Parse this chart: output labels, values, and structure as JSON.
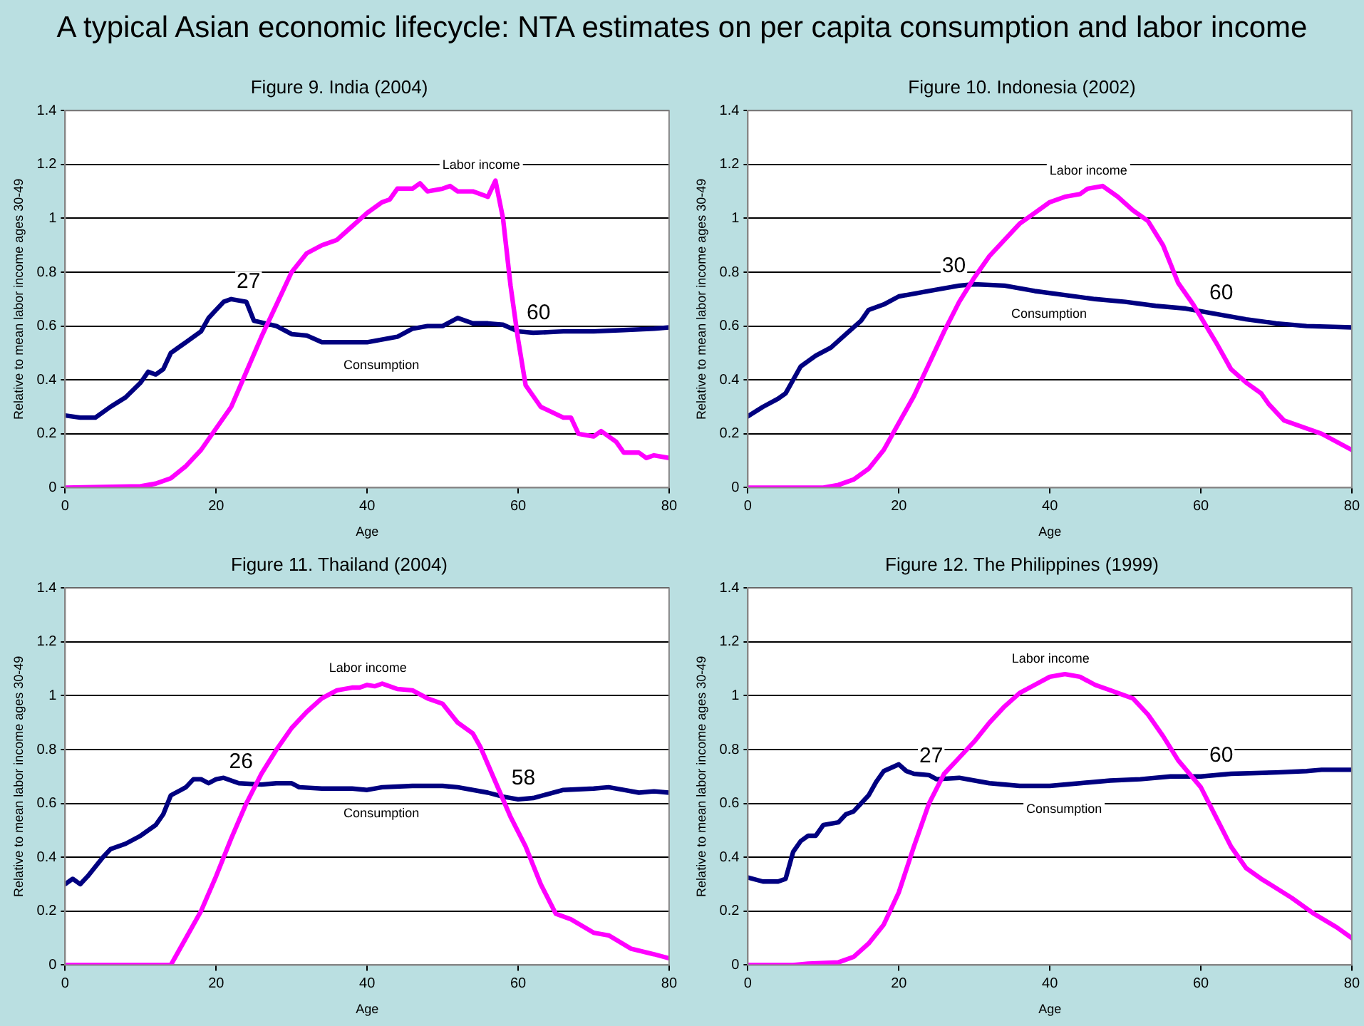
{
  "chart_data": [
    {
      "type": "line",
      "title": "Figure 9. India (2004)",
      "xlabel": "Age",
      "ylabel": "Relative to mean labor income ages 30-49",
      "xlim": [
        0,
        80
      ],
      "xticks": [
        0,
        20,
        40,
        60,
        80
      ],
      "ylim": [
        0,
        1.4
      ],
      "yticks": [
        0,
        0.2,
        0.4,
        0.6,
        0.8,
        1,
        1.2,
        1.4
      ],
      "grid": "y",
      "legend": false,
      "marker": "none",
      "line_style": "solid",
      "annotations": [
        "A typical Asian economic lifecycle: NTA estimates on per capita consumption and labor income",
        {
          "text": "27",
          "x": 27,
          "y": 0.61
        },
        {
          "text": "60",
          "x": 60,
          "y": 0.58
        }
      ],
      "series": [
        {
          "name": "Labor income",
          "color": "#ff00ff",
          "x": [
            0,
            10,
            12,
            14,
            16,
            18,
            20,
            22,
            24,
            26,
            28,
            30,
            32,
            34,
            36,
            38,
            40,
            42,
            43,
            44,
            46,
            47,
            48,
            50,
            51,
            52,
            54,
            56,
            57,
            58,
            59,
            60,
            61,
            63,
            66,
            67,
            68,
            70,
            71,
            73,
            74,
            76,
            77,
            78,
            80
          ],
          "values": [
            0,
            0.005,
            0.015,
            0.035,
            0.08,
            0.14,
            0.22,
            0.3,
            0.43,
            0.56,
            0.68,
            0.8,
            0.87,
            0.9,
            0.92,
            0.97,
            1.02,
            1.06,
            1.07,
            1.11,
            1.11,
            1.13,
            1.1,
            1.11,
            1.12,
            1.1,
            1.1,
            1.08,
            1.14,
            1,
            0.75,
            0.55,
            0.38,
            0.3,
            0.26,
            0.26,
            0.2,
            0.19,
            0.21,
            0.17,
            0.13,
            0.13,
            0.11,
            0.12,
            0.11
          ]
        },
        {
          "name": "Consumption",
          "color": "#000080",
          "x": [
            0,
            2,
            4,
            6,
            8,
            10,
            11,
            12,
            13,
            14,
            16,
            18,
            19,
            20,
            21,
            22,
            24,
            25,
            28,
            30,
            32,
            34,
            36,
            40,
            44,
            46,
            48,
            50,
            52,
            54,
            56,
            58,
            60,
            62,
            66,
            70,
            74,
            78,
            80
          ],
          "values": [
            0.268,
            0.26,
            0.26,
            0.3,
            0.335,
            0.39,
            0.43,
            0.42,
            0.44,
            0.5,
            0.54,
            0.58,
            0.63,
            0.66,
            0.69,
            0.7,
            0.69,
            0.62,
            0.6,
            0.57,
            0.565,
            0.54,
            0.54,
            0.54,
            0.56,
            0.59,
            0.6,
            0.6,
            0.63,
            0.61,
            0.61,
            0.605,
            0.58,
            0.575,
            0.58,
            0.58,
            0.585,
            0.59,
            0.595
          ]
        }
      ]
    },
    {
      "type": "line",
      "title": "Figure 10. Indonesia (2002)",
      "xlabel": "Age",
      "ylabel": "Relative to mean labor income ages 30-49",
      "xlim": [
        0,
        80
      ],
      "xticks": [
        0,
        20,
        40,
        60,
        80
      ],
      "ylim": [
        0,
        1.4
      ],
      "yticks": [
        0,
        0.2,
        0.4,
        0.6,
        0.8,
        1,
        1.2,
        1.4
      ],
      "grid": "y",
      "legend": false,
      "marker": "none",
      "line_style": "solid",
      "annotations": [
        {
          "text": "30",
          "x": 30,
          "y": 0.755
        },
        {
          "text": "60",
          "x": 60,
          "y": 0.655
        }
      ],
      "series": [
        {
          "name": "Labor income",
          "color": "#ff00ff",
          "x": [
            0,
            10,
            12,
            14,
            16,
            18,
            20,
            22,
            24,
            26,
            28,
            30,
            32,
            34,
            36,
            38,
            40,
            42,
            44,
            45,
            47,
            49,
            51,
            53,
            55,
            57,
            59,
            62,
            64,
            66,
            68,
            69,
            71,
            74,
            76,
            80
          ],
          "values": [
            0,
            0,
            0.01,
            0.03,
            0.07,
            0.14,
            0.24,
            0.34,
            0.46,
            0.58,
            0.69,
            0.78,
            0.86,
            0.92,
            0.98,
            1.02,
            1.06,
            1.08,
            1.09,
            1.11,
            1.12,
            1.08,
            1.03,
            0.99,
            0.9,
            0.76,
            0.68,
            0.54,
            0.44,
            0.39,
            0.35,
            0.31,
            0.25,
            0.22,
            0.2,
            0.14
          ]
        },
        {
          "name": "Consumption",
          "color": "#000080",
          "x": [
            0,
            2,
            4,
            5,
            7,
            9,
            11,
            13,
            15,
            16,
            18,
            20,
            24,
            28,
            30,
            34,
            38,
            42,
            46,
            50,
            54,
            58,
            62,
            66,
            70,
            74,
            80
          ],
          "values": [
            0.265,
            0.3,
            0.33,
            0.35,
            0.45,
            0.49,
            0.52,
            0.57,
            0.62,
            0.66,
            0.68,
            0.71,
            0.73,
            0.75,
            0.755,
            0.75,
            0.73,
            0.715,
            0.7,
            0.69,
            0.675,
            0.665,
            0.645,
            0.625,
            0.61,
            0.6,
            0.595
          ]
        }
      ]
    },
    {
      "type": "line",
      "title": "Figure 11. Thailand (2004)",
      "xlabel": "Age",
      "ylabel": "Relative to mean labor income ages 30-49",
      "xlim": [
        0,
        80
      ],
      "xticks": [
        0,
        20,
        40,
        60,
        80
      ],
      "ylim": [
        0,
        1.4
      ],
      "yticks": [
        0,
        0.2,
        0.4,
        0.6,
        0.8,
        1,
        1.2,
        1.4
      ],
      "grid": "y",
      "legend": false,
      "marker": "none",
      "line_style": "solid",
      "annotations": [
        {
          "text": "26",
          "x": 26,
          "y": 0.67
        },
        {
          "text": "58",
          "x": 58,
          "y": 0.625
        }
      ],
      "series": [
        {
          "name": "Labor income",
          "color": "#ff00ff",
          "x": [
            0,
            14,
            16,
            18,
            20,
            22,
            24,
            26,
            28,
            30,
            32,
            34,
            36,
            38,
            39,
            40,
            41,
            42,
            44,
            46,
            48,
            50,
            52,
            54,
            55,
            57,
            59,
            61,
            63,
            65,
            67,
            70,
            72,
            75,
            78,
            80
          ],
          "values": [
            0,
            0,
            0.1,
            0.2,
            0.33,
            0.47,
            0.6,
            0.71,
            0.8,
            0.88,
            0.94,
            0.99,
            1.02,
            1.03,
            1.03,
            1.04,
            1.035,
            1.045,
            1.025,
            1.02,
            0.99,
            0.97,
            0.9,
            0.86,
            0.81,
            0.68,
            0.55,
            0.44,
            0.3,
            0.19,
            0.17,
            0.12,
            0.11,
            0.06,
            0.04,
            0.025
          ]
        },
        {
          "name": "Consumption",
          "color": "#000080",
          "x": [
            0,
            1,
            2,
            3,
            5,
            6,
            8,
            10,
            12,
            13,
            14,
            16,
            17,
            18,
            19,
            20,
            21,
            23,
            26,
            28,
            30,
            31,
            34,
            38,
            40,
            42,
            46,
            50,
            52,
            56,
            58,
            60,
            62,
            64,
            66,
            70,
            72,
            74,
            76,
            78,
            80
          ],
          "values": [
            0.3,
            0.32,
            0.3,
            0.33,
            0.4,
            0.43,
            0.45,
            0.48,
            0.52,
            0.56,
            0.63,
            0.66,
            0.69,
            0.69,
            0.675,
            0.69,
            0.695,
            0.675,
            0.67,
            0.675,
            0.675,
            0.66,
            0.655,
            0.655,
            0.65,
            0.66,
            0.665,
            0.665,
            0.66,
            0.64,
            0.625,
            0.615,
            0.62,
            0.635,
            0.65,
            0.655,
            0.66,
            0.65,
            0.64,
            0.645,
            0.64
          ]
        }
      ]
    },
    {
      "type": "line",
      "title": "Figure 12. The Philippines (1999)",
      "xlabel": "Age",
      "ylabel": "Relative to mean labor income ages 30-49",
      "xlim": [
        0,
        80
      ],
      "xticks": [
        0,
        20,
        40,
        60,
        80
      ],
      "ylim": [
        0,
        1.4
      ],
      "yticks": [
        0,
        0.2,
        0.4,
        0.6,
        0.8,
        1,
        1.2,
        1.4
      ],
      "grid": "y",
      "legend": false,
      "marker": "none",
      "line_style": "solid",
      "annotations": [
        {
          "text": "27",
          "x": 27,
          "y": 0.69
        },
        {
          "text": "60",
          "x": 60,
          "y": 0.7
        }
      ],
      "series": [
        {
          "name": "Labor income",
          "color": "#ff00ff",
          "x": [
            0,
            6,
            8,
            12,
            14,
            16,
            18,
            20,
            22,
            24,
            26,
            28,
            30,
            32,
            34,
            36,
            38,
            40,
            42,
            44,
            46,
            48,
            51,
            53,
            55,
            57,
            60,
            62,
            64,
            66,
            68,
            72,
            75,
            78,
            80
          ],
          "values": [
            0,
            0,
            0.005,
            0.01,
            0.03,
            0.08,
            0.15,
            0.27,
            0.44,
            0.6,
            0.71,
            0.77,
            0.83,
            0.9,
            0.96,
            1.01,
            1.04,
            1.07,
            1.08,
            1.07,
            1.04,
            1.02,
            0.99,
            0.93,
            0.85,
            0.76,
            0.66,
            0.55,
            0.44,
            0.36,
            0.32,
            0.25,
            0.19,
            0.14,
            0.1
          ]
        },
        {
          "name": "Consumption",
          "color": "#000080",
          "x": [
            0,
            2,
            4,
            5,
            6,
            7,
            8,
            9,
            10,
            12,
            13,
            14,
            16,
            17,
            18,
            20,
            21,
            22,
            24,
            25,
            28,
            32,
            36,
            40,
            44,
            48,
            52,
            56,
            60,
            64,
            70,
            74,
            76,
            80
          ],
          "values": [
            0.325,
            0.31,
            0.31,
            0.32,
            0.42,
            0.46,
            0.48,
            0.48,
            0.52,
            0.53,
            0.56,
            0.57,
            0.63,
            0.68,
            0.72,
            0.745,
            0.72,
            0.71,
            0.705,
            0.69,
            0.695,
            0.675,
            0.665,
            0.665,
            0.675,
            0.685,
            0.69,
            0.7,
            0.7,
            0.71,
            0.715,
            0.72,
            0.725,
            0.725
          ]
        }
      ]
    }
  ]
}
